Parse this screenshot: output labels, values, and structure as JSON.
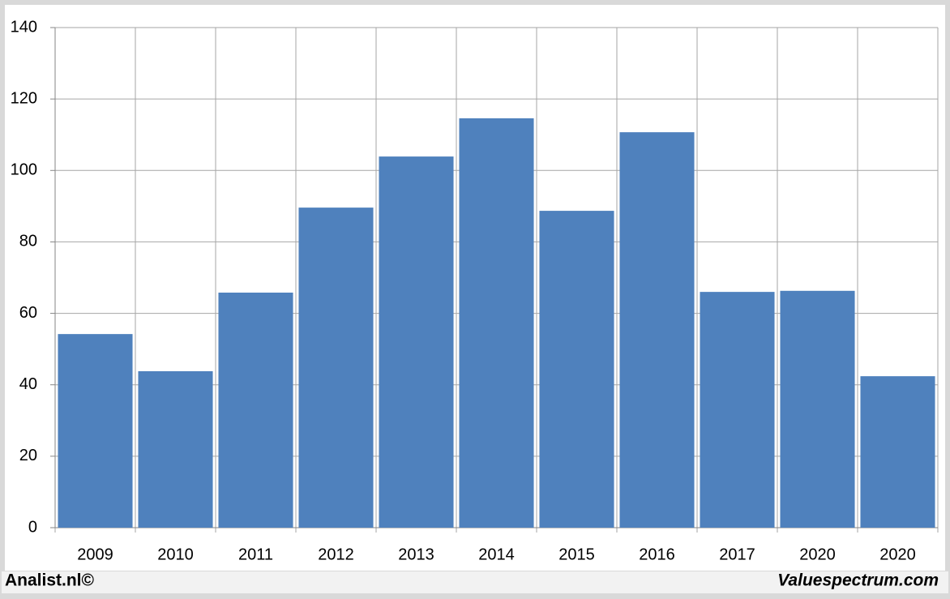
{
  "chart_data": {
    "type": "bar",
    "categories": [
      "2009",
      "2010",
      "2011",
      "2012",
      "2013",
      "2014",
      "2015",
      "2016",
      "2017",
      "2020",
      "2020"
    ],
    "values": [
      54.2,
      43.8,
      65.8,
      89.6,
      103.9,
      114.6,
      88.7,
      110.7,
      66.0,
      66.3,
      42.4
    ],
    "color": "#4f81bd",
    "ylim": [
      0,
      140
    ],
    "yticks": [
      0,
      20,
      40,
      60,
      80,
      100,
      120,
      140
    ],
    "grid": true
  },
  "footer": {
    "left": "Analist.nl©",
    "right": "Valuespectrum.com"
  }
}
